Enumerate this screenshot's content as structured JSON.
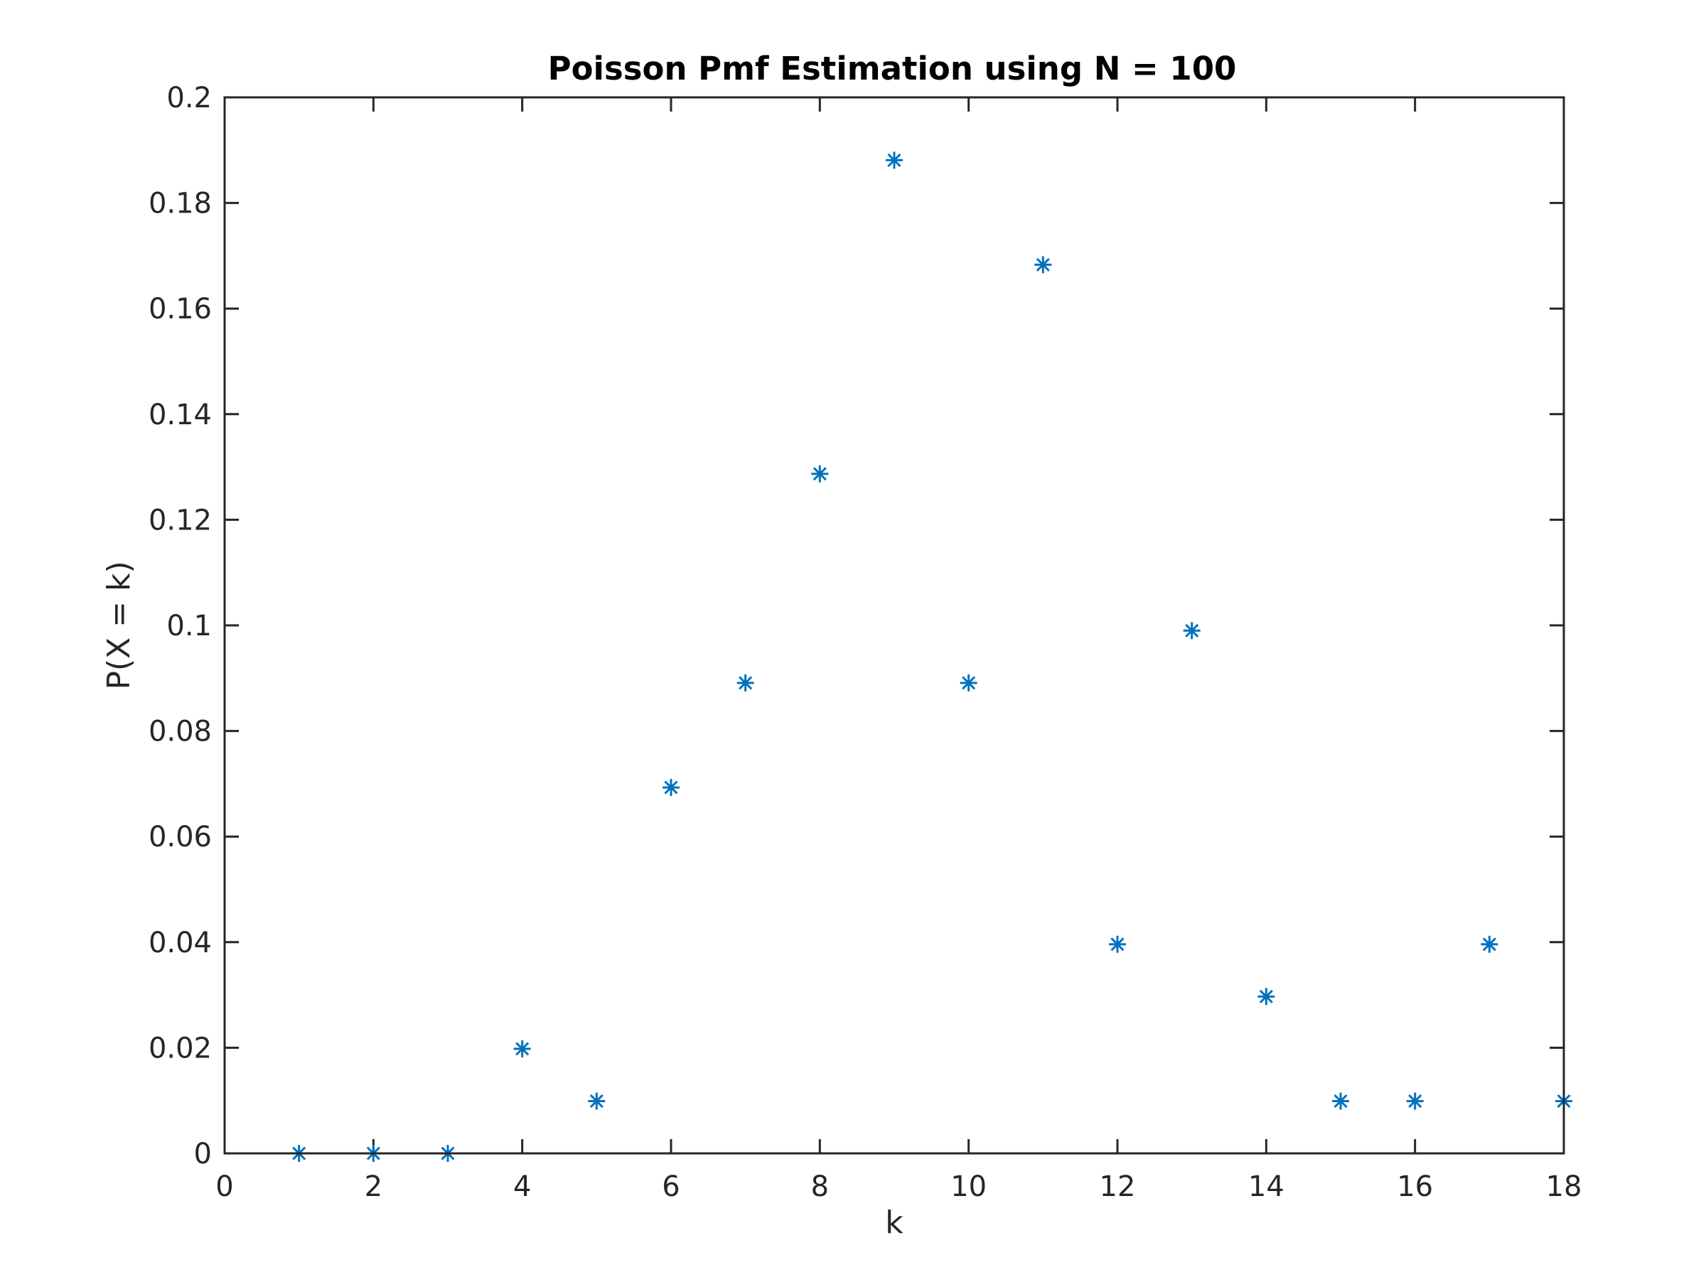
{
  "chart_data": {
    "type": "scatter",
    "title": "Poisson Pmf Estimation using N = 100",
    "xlabel": "k",
    "ylabel": "P(X = k)",
    "xlim": [
      0,
      18
    ],
    "ylim": [
      0,
      0.2
    ],
    "xticks": [
      0,
      2,
      4,
      6,
      8,
      10,
      12,
      14,
      16,
      18
    ],
    "xtick_labels": [
      "0",
      "2",
      "4",
      "6",
      "8",
      "10",
      "12",
      "14",
      "16",
      "18"
    ],
    "yticks": [
      0,
      0.02,
      0.04,
      0.06,
      0.08,
      0.1,
      0.12,
      0.14,
      0.16,
      0.18,
      0.2
    ],
    "ytick_labels": [
      "0",
      "0.02",
      "0.04",
      "0.06",
      "0.08",
      "0.1",
      "0.12",
      "0.14",
      "0.16",
      "0.18",
      "0.2"
    ],
    "grid": false,
    "marker": "asterisk",
    "color": "#0072BD",
    "series": [
      {
        "x": [
          1,
          2,
          3,
          4,
          5,
          6,
          7,
          8,
          9,
          10,
          11,
          12,
          13,
          14,
          15,
          16,
          17,
          18
        ],
        "y": [
          0,
          0,
          0,
          0.0198,
          0.0099,
          0.0693,
          0.0891,
          0.1287,
          0.1881,
          0.0891,
          0.1683,
          0.0396,
          0.099,
          0.0297,
          0.0099,
          0.0099,
          0.0396,
          0.0099
        ]
      }
    ]
  }
}
